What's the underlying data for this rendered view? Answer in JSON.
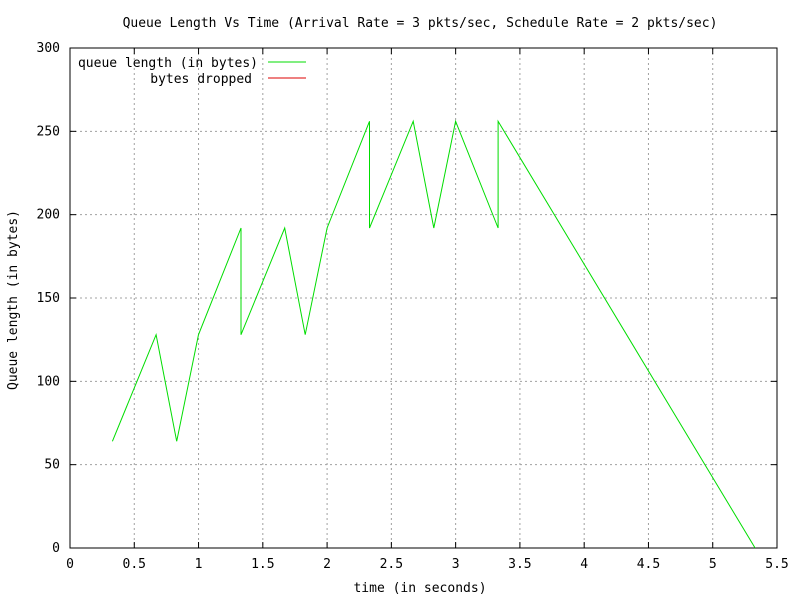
{
  "chart_data": {
    "type": "line",
    "title": "Queue Length Vs Time (Arrival Rate = 3 pkts/sec, Schedule Rate = 2 pkts/sec)",
    "xlabel": "time (in seconds)",
    "ylabel": "Queue length (in bytes)",
    "xlim": [
      0,
      5.5
    ],
    "ylim": [
      0,
      300
    ],
    "xticks": [
      0,
      0.5,
      1,
      1.5,
      2,
      2.5,
      3,
      3.5,
      4,
      4.5,
      5,
      5.5
    ],
    "xtick_labels": [
      "0",
      "0.5",
      "1",
      "1.5",
      "2",
      "2.5",
      "3",
      "3.5",
      "4",
      "4.5",
      "5",
      "5.5"
    ],
    "yticks": [
      0,
      50,
      100,
      150,
      200,
      250,
      300
    ],
    "ytick_labels": [
      "0",
      "50",
      "100",
      "150",
      "200",
      "250",
      "300"
    ],
    "grid": true,
    "legend_position": "top-left",
    "series": [
      {
        "name": "queue length (in bytes)",
        "color": "#00dd00",
        "x": [
          0.33,
          0.67,
          0.83,
          1.0,
          1.33,
          1.33,
          1.67,
          1.83,
          2.0,
          2.33,
          2.33,
          2.67,
          2.83,
          3.0,
          3.33,
          3.33,
          5.33
        ],
        "y": [
          64,
          128,
          64,
          128,
          192,
          128,
          192,
          128,
          192,
          256,
          192,
          256,
          192,
          256,
          192,
          256,
          0
        ]
      },
      {
        "name": "bytes dropped",
        "color": "#dd0000",
        "x": [],
        "y": []
      }
    ]
  }
}
